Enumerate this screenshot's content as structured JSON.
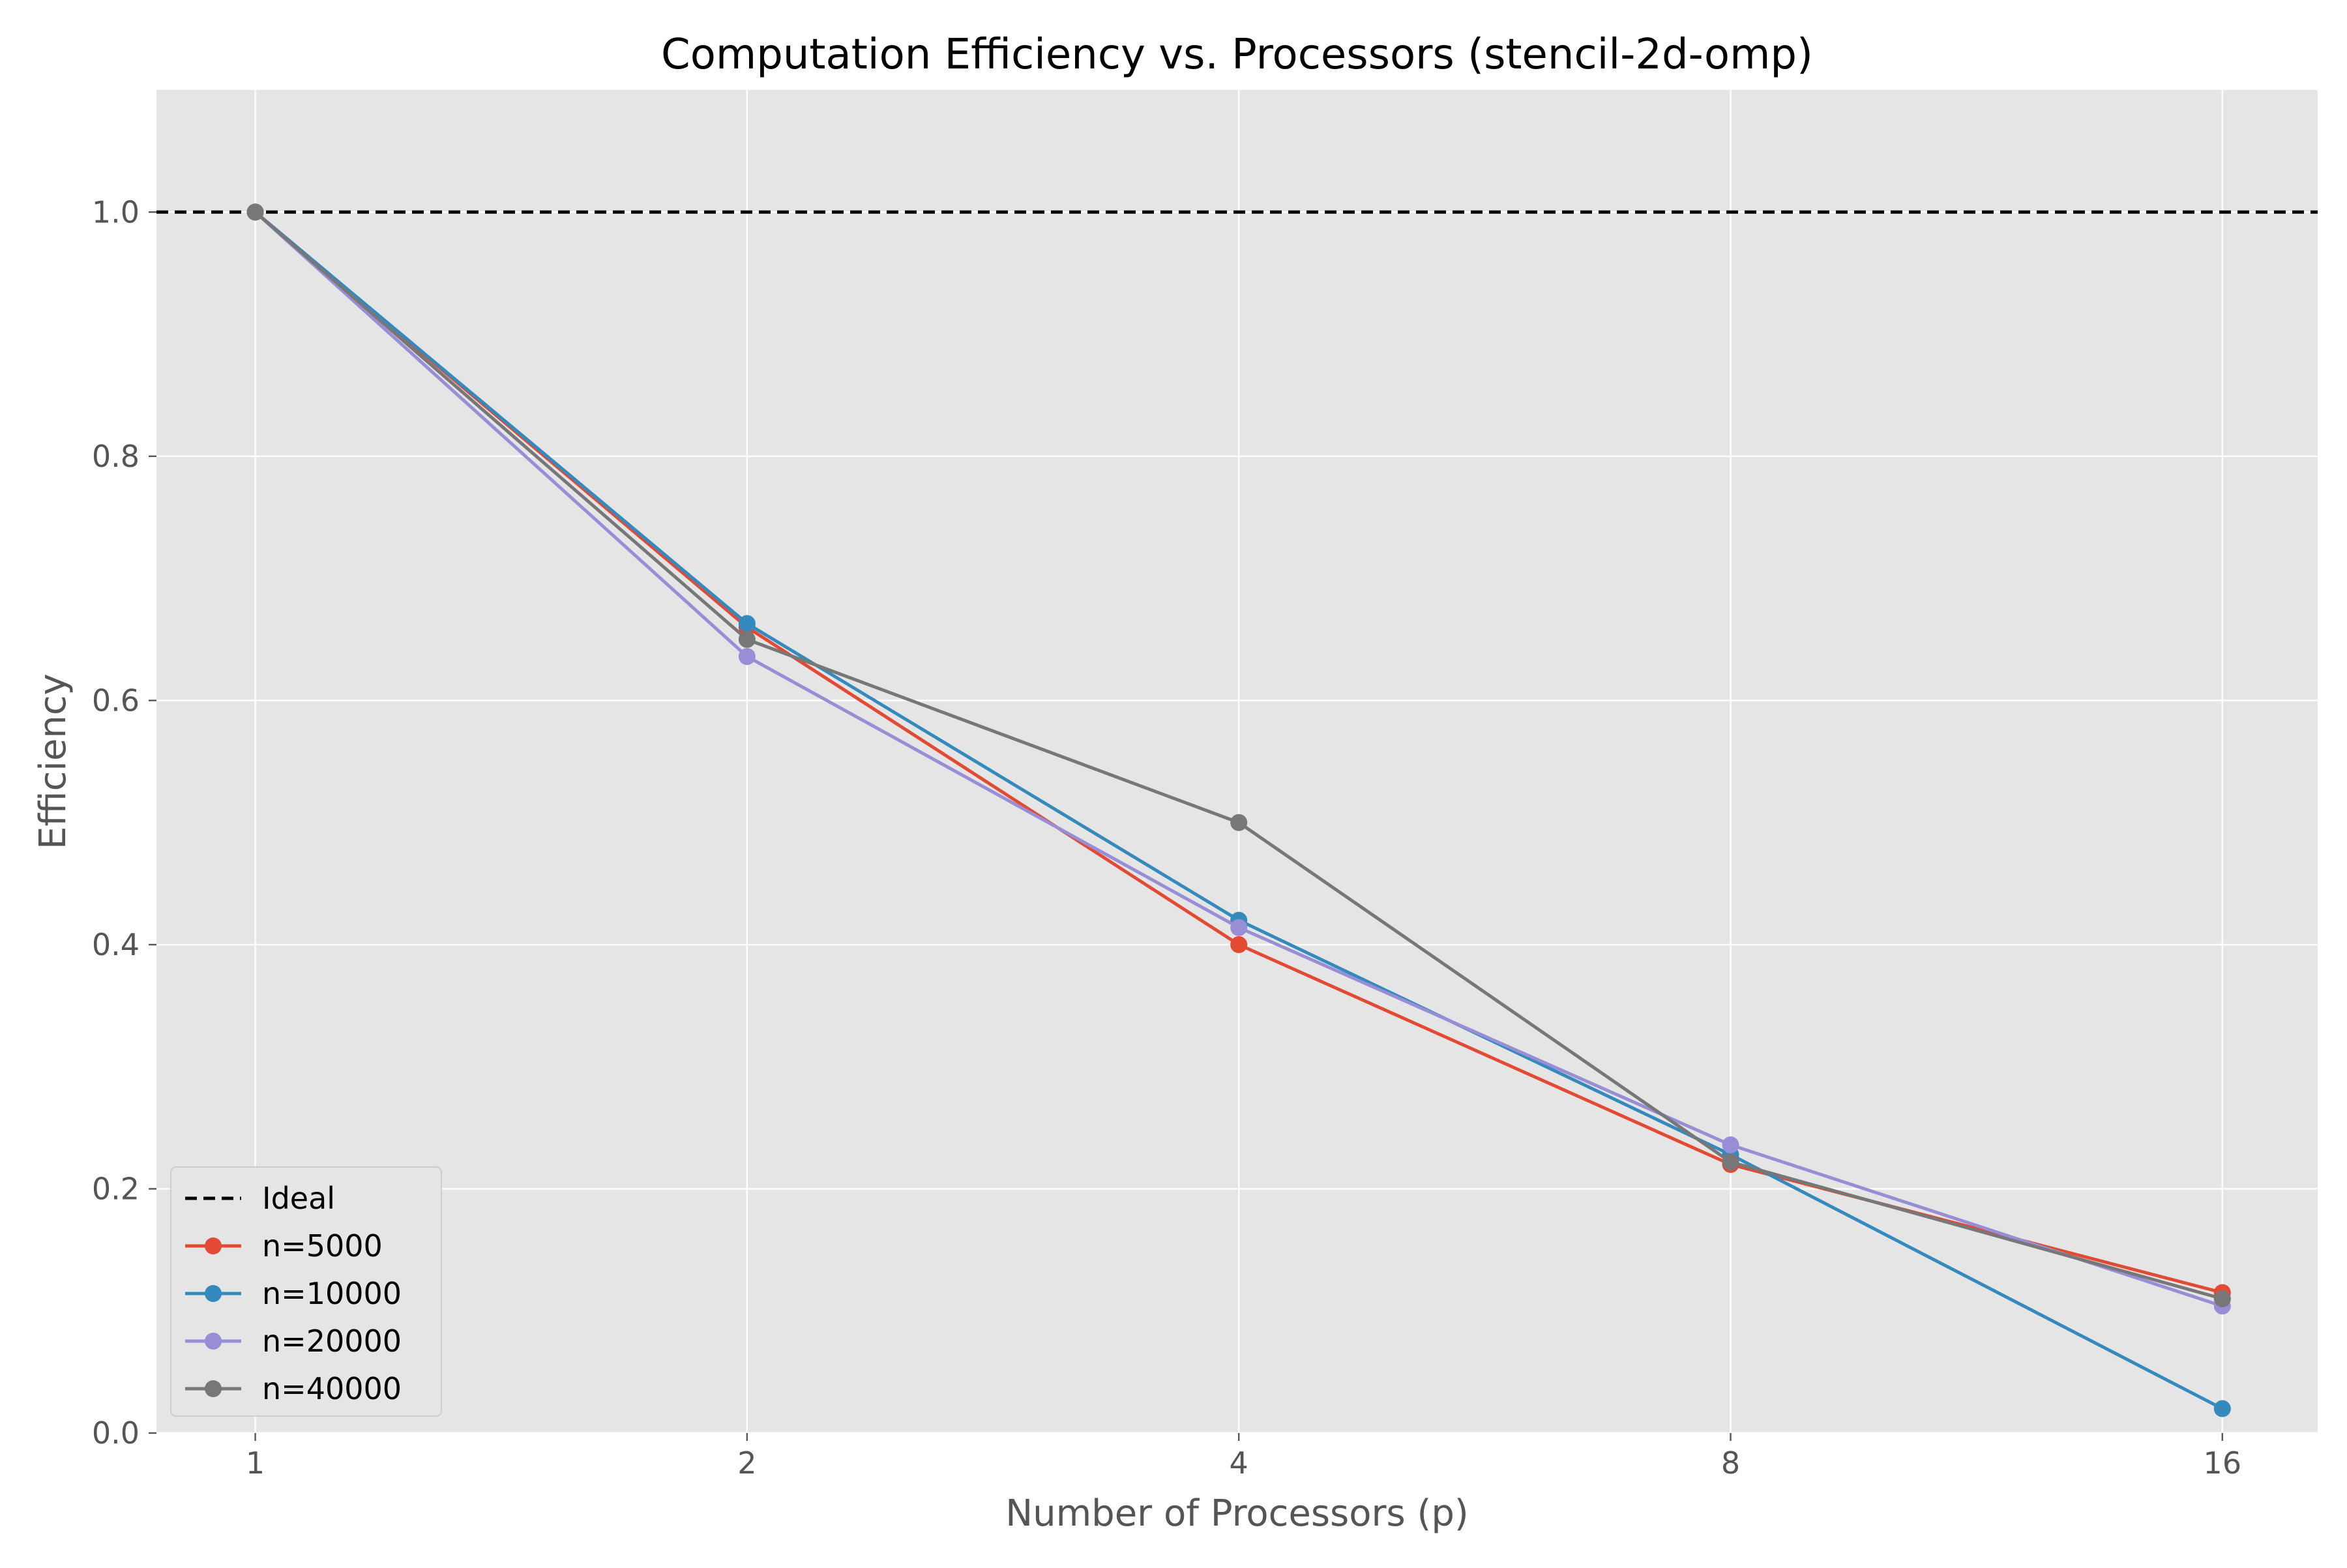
{
  "chart_data": {
    "type": "line",
    "title": "Computation Efficiency vs. Processors (stencil-2d-omp)",
    "xlabel": "Number of Processors (p)",
    "ylabel": "Efficiency",
    "x_scale": "log2",
    "x": [
      1,
      2,
      4,
      8,
      16
    ],
    "x_tick_labels": [
      "1",
      "2",
      "4",
      "8",
      "16"
    ],
    "y_ticks": [
      0.0,
      0.2,
      0.4,
      0.6,
      0.8,
      1.0
    ],
    "y_tick_labels": [
      "0.0",
      "0.2",
      "0.4",
      "0.6",
      "0.8",
      "1.0"
    ],
    "xlim": [
      0.87,
      18.3
    ],
    "ylim": [
      0.0,
      1.1
    ],
    "grid": true,
    "legend_position": "lower-left",
    "background": "#e5e5e5",
    "reference_line": {
      "name": "Ideal",
      "y": 1.0,
      "color": "#000000",
      "style": "dashed"
    },
    "series": [
      {
        "name": "n=5000",
        "color": "#e24a33",
        "values": [
          1.0,
          0.66,
          0.4,
          0.22,
          0.115
        ]
      },
      {
        "name": "n=10000",
        "color": "#348abd",
        "values": [
          1.0,
          0.663,
          0.42,
          0.228,
          0.02
        ]
      },
      {
        "name": "n=20000",
        "color": "#988ed5",
        "values": [
          1.0,
          0.636,
          0.414,
          0.236,
          0.104
        ]
      },
      {
        "name": "n=40000",
        "color": "#777777",
        "values": [
          1.0,
          0.65,
          0.5,
          0.222,
          0.11
        ]
      }
    ]
  }
}
